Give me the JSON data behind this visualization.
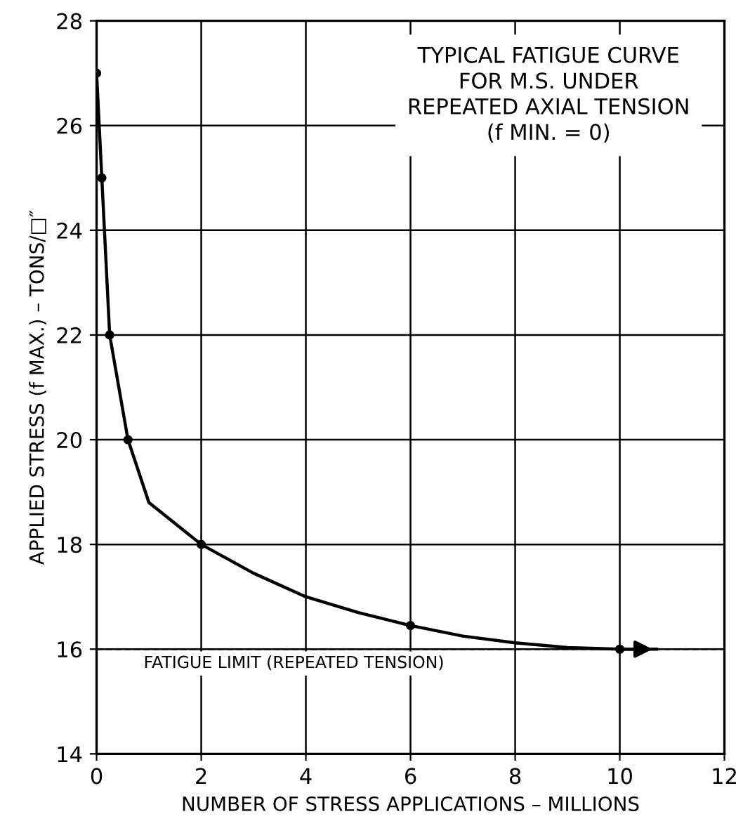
{
  "chart_data": {
    "type": "line",
    "title": "TYPICAL FATIGUE CURVE\nFOR M.S. UNDER\nREPEATED AXIAL TENSION\n(f MIN. = 0)",
    "xlabel": "NUMBER OF STRESS APPLICATIONS – MILLIONS",
    "ylabel": "APPLIED STRESS (f MAX.) – TONS/□″",
    "series": [
      {
        "color": "#000000",
        "marker": "none",
        "x": [
          0.0,
          0.1,
          0.25,
          0.6,
          1,
          2,
          3,
          4,
          5,
          6,
          7,
          8,
          9,
          10,
          10.7
        ],
        "values": [
          27,
          25,
          22,
          20,
          18.8,
          18,
          17.45,
          17.0,
          16.7,
          16.45,
          16.25,
          16.12,
          16.03,
          16,
          16
        ]
      },
      {
        "type": "scatter",
        "color": "#000000",
        "marker": "circle",
        "x": [
          0.0,
          0.1,
          0.25,
          0.6,
          2,
          6,
          10
        ],
        "values": [
          27,
          25,
          22,
          20,
          18,
          16.45,
          16
        ]
      }
    ],
    "ref_lines": [
      {
        "axis": "y",
        "value": 16,
        "label": "FATIGUE LIMIT (REPEATED TENSION)",
        "color": "#000000",
        "line_style": "dashed"
      }
    ],
    "xlim": [
      0,
      12
    ],
    "ylim": [
      14,
      28
    ],
    "xticks": [
      0,
      2,
      4,
      6,
      8,
      10,
      12
    ],
    "yticks": [
      14,
      16,
      18,
      20,
      22,
      24,
      26,
      28
    ],
    "grid": true
  }
}
